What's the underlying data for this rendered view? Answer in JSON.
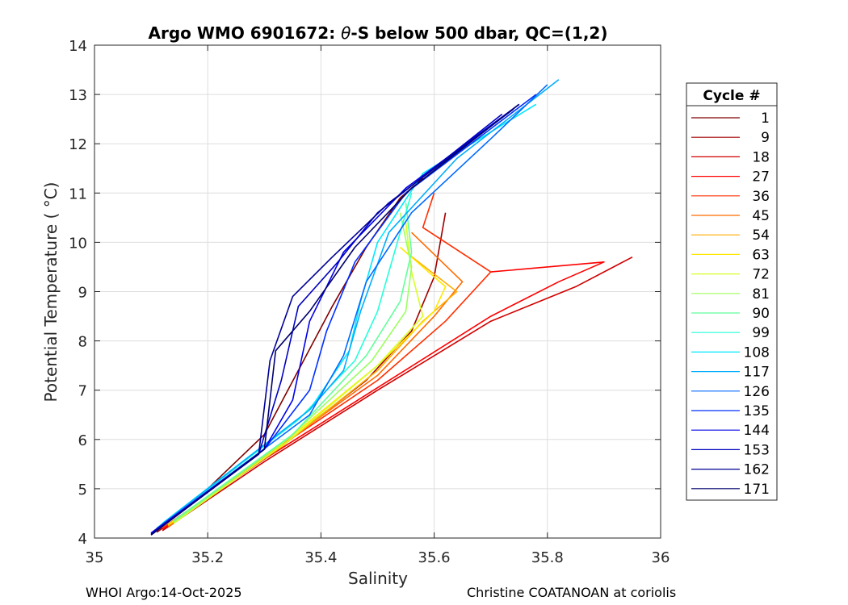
{
  "chart_data": {
    "type": "line",
    "title_prefix": "Argo WMO 6901672: ",
    "title_symbol": "θ",
    "title_suffix": "-S below 500 dbar,  QC=(1,2)",
    "xlabel": "Salinity",
    "ylabel": "Potential Temperature ( °C)",
    "xlim": [
      35,
      36
    ],
    "ylim": [
      4,
      14
    ],
    "xticks": [
      35,
      35.2,
      35.4,
      35.6,
      35.8,
      36
    ],
    "xtick_labels": [
      "35",
      "35.2",
      "35.4",
      "35.6",
      "35.8",
      "36"
    ],
    "yticks": [
      4,
      5,
      6,
      7,
      8,
      9,
      10,
      11,
      12,
      13,
      14
    ],
    "ytick_labels": [
      "4",
      "5",
      "6",
      "7",
      "8",
      "9",
      "10",
      "11",
      "12",
      "13",
      "14"
    ],
    "grid": true,
    "legend_title": "Cycle #",
    "legend_placement": "outside-right",
    "series": [
      {
        "name": "1",
        "color": "#800000",
        "x": [
          35.1,
          35.2,
          35.3,
          35.36,
          35.42,
          35.48,
          35.54,
          35.58
        ],
        "y": [
          4.1,
          5.0,
          6.1,
          7.4,
          8.7,
          9.9,
          10.9,
          11.3
        ]
      },
      {
        "name": "9",
        "color": "#a00000",
        "x": [
          35.11,
          35.3,
          35.48,
          35.56,
          35.6,
          35.62
        ],
        "y": [
          4.12,
          5.6,
          7.2,
          8.2,
          9.3,
          10.6
        ]
      },
      {
        "name": "18",
        "color": "#d00000",
        "x": [
          35.12,
          35.3,
          35.5,
          35.7,
          35.85,
          35.95
        ],
        "y": [
          4.15,
          5.55,
          7.0,
          8.4,
          9.1,
          9.7
        ]
      },
      {
        "name": "27",
        "color": "#ff0000",
        "x": [
          35.12,
          35.3,
          35.5,
          35.7,
          35.82,
          35.9,
          35.7
        ],
        "y": [
          4.18,
          5.6,
          7.05,
          8.5,
          9.2,
          9.6,
          9.4
        ]
      },
      {
        "name": "36",
        "color": "#ff2e00",
        "x": [
          35.12,
          35.32,
          35.5,
          35.62,
          35.7,
          35.58,
          35.6
        ],
        "y": [
          4.2,
          5.8,
          7.2,
          8.4,
          9.4,
          10.3,
          11.0
        ]
      },
      {
        "name": "45",
        "color": "#ff6a00",
        "x": [
          35.13,
          35.32,
          35.5,
          35.6,
          35.65,
          35.56
        ],
        "y": [
          4.22,
          5.8,
          7.3,
          8.5,
          9.2,
          10.2
        ]
      },
      {
        "name": "54",
        "color": "#ffae00",
        "x": [
          35.13,
          35.33,
          35.5,
          35.58,
          35.64,
          35.55
        ],
        "y": [
          4.25,
          5.85,
          7.4,
          8.4,
          9.0,
          9.8
        ]
      },
      {
        "name": "63",
        "color": "#ffe800",
        "x": [
          35.13,
          35.33,
          35.5,
          35.6,
          35.62,
          35.54
        ],
        "y": [
          4.27,
          5.9,
          7.5,
          8.6,
          9.1,
          9.9
        ]
      },
      {
        "name": "72",
        "color": "#d8ff25",
        "x": [
          35.14,
          35.34,
          35.5,
          35.58,
          35.56,
          35.55
        ],
        "y": [
          4.3,
          5.95,
          7.5,
          8.5,
          9.4,
          10.4
        ]
      },
      {
        "name": "81",
        "color": "#9cff62",
        "x": [
          35.14,
          35.34,
          35.49,
          35.55,
          35.56,
          35.54
        ],
        "y": [
          4.32,
          6.0,
          7.6,
          8.6,
          9.5,
          10.6
        ]
      },
      {
        "name": "90",
        "color": "#62ff9c",
        "x": [
          35.14,
          35.35,
          35.48,
          35.54,
          35.56,
          35.55
        ],
        "y": [
          4.35,
          6.1,
          7.7,
          8.8,
          9.8,
          10.8
        ]
      },
      {
        "name": "99",
        "color": "#25ffd8",
        "x": [
          35.13,
          35.36,
          35.46,
          35.5,
          35.53,
          35.56
        ],
        "y": [
          4.37,
          6.4,
          7.6,
          8.6,
          9.8,
          11.0
        ]
      },
      {
        "name": "108",
        "color": "#00e8ff",
        "x": [
          35.12,
          35.38,
          35.45,
          35.47,
          35.5,
          35.58,
          35.78
        ],
        "y": [
          4.3,
          6.6,
          7.8,
          8.8,
          10.0,
          11.4,
          12.8
        ]
      },
      {
        "name": "117",
        "color": "#00aeff",
        "x": [
          35.11,
          35.38,
          35.44,
          35.47,
          35.52,
          35.64,
          35.82
        ],
        "y": [
          4.2,
          6.6,
          7.4,
          8.6,
          10.2,
          11.7,
          13.3
        ]
      },
      {
        "name": "126",
        "color": "#006aff",
        "x": [
          35.1,
          35.38,
          35.44,
          35.48,
          35.56,
          35.7,
          35.8
        ],
        "y": [
          4.1,
          6.5,
          7.7,
          9.2,
          10.6,
          12.1,
          13.2
        ]
      },
      {
        "name": "135",
        "color": "#002eff",
        "x": [
          35.1,
          35.3,
          35.38,
          35.41,
          35.46,
          35.55,
          35.78
        ],
        "y": [
          4.1,
          5.8,
          7.0,
          8.2,
          9.6,
          11.0,
          13.0
        ]
      },
      {
        "name": "144",
        "color": "#0000e8",
        "x": [
          35.1,
          35.3,
          35.35,
          35.38,
          35.44,
          35.55,
          35.75
        ],
        "y": [
          4.1,
          5.8,
          6.8,
          8.4,
          9.8,
          11.1,
          12.8
        ]
      },
      {
        "name": "153",
        "color": "#0000c0",
        "x": [
          35.1,
          35.29,
          35.33,
          35.36,
          35.43,
          35.5,
          35.72
        ],
        "y": [
          4.08,
          5.7,
          7.2,
          8.7,
          9.6,
          10.6,
          12.6
        ]
      },
      {
        "name": "162",
        "color": "#000096",
        "x": [
          35.1,
          35.29,
          35.31,
          35.35,
          35.42,
          35.52,
          35.74
        ],
        "y": [
          4.07,
          5.7,
          7.6,
          8.9,
          9.7,
          10.8,
          12.7
        ]
      },
      {
        "name": "171",
        "color": "#00006e",
        "x": [
          35.1,
          35.3,
          35.32,
          35.38,
          35.46,
          35.56,
          35.75
        ],
        "y": [
          4.06,
          5.8,
          7.8,
          8.6,
          9.9,
          11.1,
          12.8
        ]
      }
    ]
  },
  "footer": {
    "left": "WHOI Argo:14-Oct-2025",
    "right": "Christine COATANOAN at coriolis"
  }
}
